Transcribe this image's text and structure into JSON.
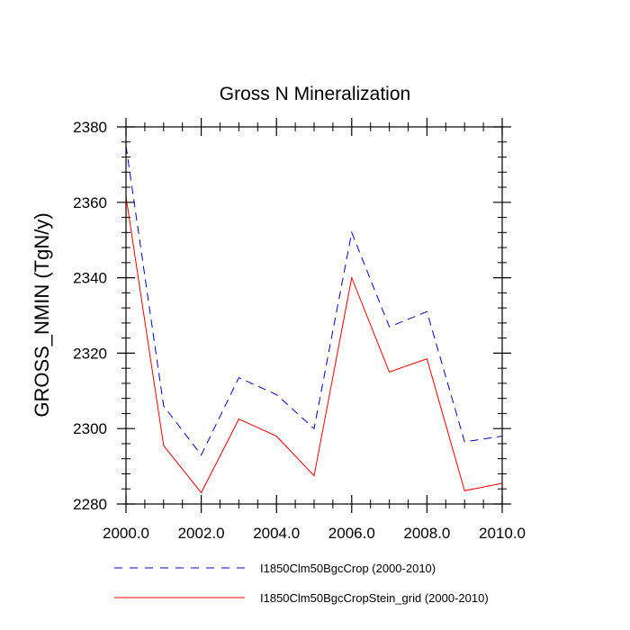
{
  "chart_data": {
    "type": "line",
    "title": "Gross N Mineralization",
    "xlabel": "",
    "ylabel": "GROSS_NMIN  (TgN/y)",
    "xlim": [
      2000,
      2010
    ],
    "ylim": [
      2280,
      2380
    ],
    "x_ticks": [
      2000,
      2002,
      2004,
      2006,
      2008,
      2010
    ],
    "x_tick_labels": [
      "2000.0",
      "2002.0",
      "2004.0",
      "2006.0",
      "2008.0",
      "2010.0"
    ],
    "y_ticks": [
      2280,
      2300,
      2320,
      2340,
      2360,
      2380
    ],
    "y_tick_labels": [
      "2280",
      "2300",
      "2320",
      "2340",
      "2360",
      "2380"
    ],
    "grid": false,
    "legend_position": "bottom",
    "x": [
      2000,
      2001,
      2002,
      2003,
      2004,
      2005,
      2006,
      2007,
      2008,
      2009,
      2010
    ],
    "series": [
      {
        "name": "I1850Clm50BgcCrop (2000-2010)",
        "color": "#0000cc",
        "style": "dashed",
        "values": [
          2375,
          2306,
          2293,
          2313.5,
          2309,
          2300,
          2352,
          2327,
          2331,
          2296.5,
          2298
        ]
      },
      {
        "name": "I1850Clm50BgcCropStein_grid (2000-2010)",
        "color": "#ff0000",
        "style": "solid",
        "values": [
          2361.5,
          2295.5,
          2283,
          2302.5,
          2298,
          2287.5,
          2340,
          2315,
          2318.5,
          2283.5,
          2285.5
        ]
      }
    ]
  }
}
